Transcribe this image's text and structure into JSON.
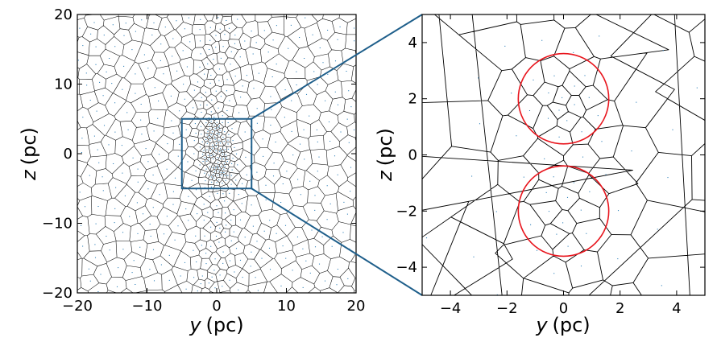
{
  "chart_data": [
    {
      "type": "scatter",
      "panel": "left",
      "description": "Voronoi tessellation of gas cells in a 40x40 pc slice; dense filament along z near y=0; zoom box drawn from y=-5..5, z=-5..5",
      "xlabel_var": "y",
      "xlabel_unit": "(pc)",
      "ylabel_var": "z",
      "ylabel_unit": "(pc)",
      "xlim": [
        -20,
        20
      ],
      "ylim": [
        -20,
        20
      ],
      "xticks": [
        -20,
        -10,
        0,
        10,
        20
      ],
      "yticks": [
        -20,
        -10,
        0,
        10,
        20
      ],
      "xtick_labels": [
        "−20",
        "−10",
        "0",
        "10",
        "20"
      ],
      "ytick_labels": [
        "−20",
        "−10",
        "0",
        "10",
        "20"
      ],
      "zoom_box": {
        "x": [
          -5,
          5
        ],
        "y": [
          -5,
          5
        ]
      },
      "zoom_color": "#1f5f8b",
      "line_color": "#000000",
      "point_color": "#1f77b4"
    },
    {
      "type": "scatter",
      "panel": "right",
      "description": "Zoom into central 10x10 pc region showing Voronoi cells and two red circles marking dense cores",
      "xlabel_var": "y",
      "xlabel_unit": "(pc)",
      "ylabel_var": "z",
      "ylabel_unit": "(pc)",
      "xlim": [
        -5,
        5
      ],
      "ylim": [
        -5,
        5
      ],
      "xticks": [
        -4,
        -2,
        0,
        2,
        4
      ],
      "yticks": [
        -4,
        -2,
        0,
        2,
        4
      ],
      "xtick_labels": [
        "−4",
        "−2",
        "0",
        "2",
        "4"
      ],
      "ytick_labels": [
        "−4",
        "−2",
        "0",
        "2",
        "4"
      ],
      "circles": [
        {
          "cx": 0.0,
          "cy": 2.0,
          "r": 1.6
        },
        {
          "cx": 0.0,
          "cy": -2.0,
          "r": 1.6
        }
      ],
      "circle_color": "#e8141c",
      "line_color": "#000000",
      "point_color": "#1f77b4"
    }
  ]
}
